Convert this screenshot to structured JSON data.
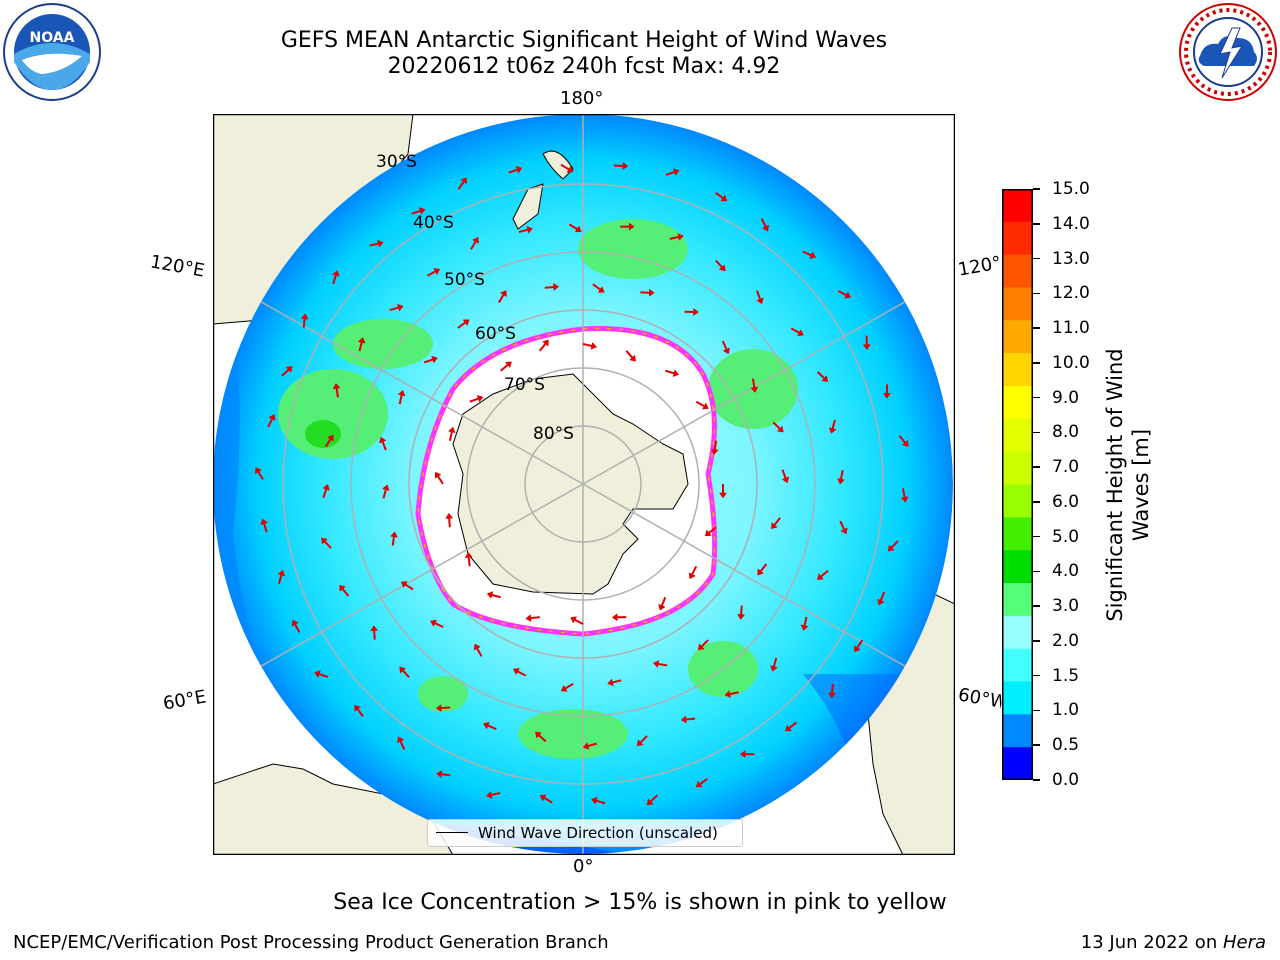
{
  "header": {
    "title_line1": "GEFS MEAN Antarctic Significant Height of Wind Waves",
    "title_line2": "20220612 t06z 240h fcst   Max: 4.92"
  },
  "logos": {
    "left": {
      "text": "NOAA",
      "ring_text": "NATIONAL OCEANIC AND ATMOSPHERIC ADMINISTRATION · U.S. DEPARTMENT OF COMMERCE"
    },
    "right": {
      "ring_text": "NATIONAL WEATHER SERVICE"
    }
  },
  "map": {
    "longitude_labels": [
      "180°",
      "0°",
      "120°E",
      "60°E",
      "120°",
      "60°W"
    ],
    "latitude_labels": [
      "30°S",
      "40°S",
      "50°S",
      "60°S",
      "70°S",
      "80°S"
    ],
    "legend_label": "Wind Wave Direction (unscaled)",
    "colors": {
      "land": "#efefdb",
      "ice": "#ffffff",
      "ice_edge": "#ff33ff",
      "arrows": "#e00000",
      "grid": "#b0b0b0"
    }
  },
  "colorbar": {
    "label": "Significant Height of Wind Waves [m]",
    "ticks": [
      "15.0",
      "14.0",
      "13.0",
      "12.0",
      "11.0",
      "10.0",
      "9.0",
      "8.0",
      "7.0",
      "6.0",
      "5.0",
      "4.0",
      "3.0",
      "2.0",
      "1.5",
      "1.0",
      "0.5",
      "0.0"
    ],
    "colors_top_to_bottom": [
      "#ff0000",
      "#ff2a00",
      "#ff5500",
      "#ff8000",
      "#ffaa00",
      "#ffd500",
      "#ffff00",
      "#e6ff00",
      "#ccff00",
      "#99ff00",
      "#44ee00",
      "#00dd00",
      "#55ff77",
      "#99ffff",
      "#44ffff",
      "#00eeff",
      "#0088ff",
      "#0000ff"
    ]
  },
  "footer": {
    "caption": "Sea Ice Concentration > 15% is shown in pink to yellow",
    "left": "NCEP/EMC/Verification Post Processing Product Generation Branch",
    "right_prefix": "13 Jun 2022 on ",
    "right_italic": "Hera"
  }
}
